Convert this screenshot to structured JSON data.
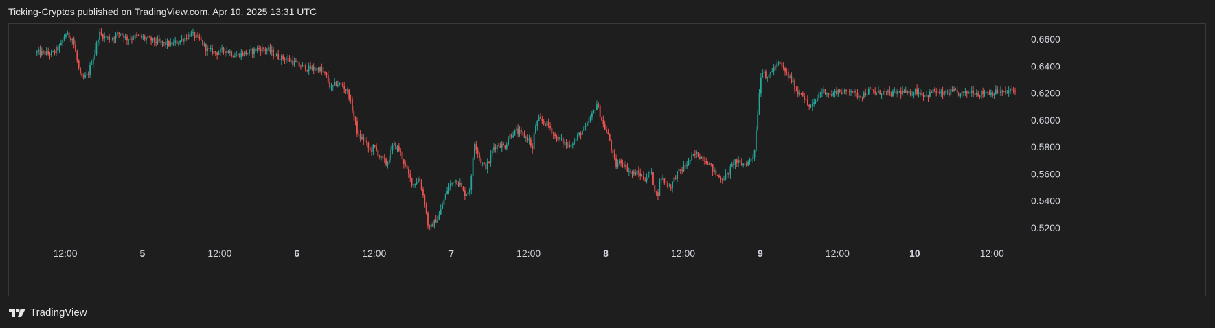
{
  "header": {
    "title": "Ticking-Cryptos published on TradingView.com, Apr 10, 2025 13:31 UTC"
  },
  "footer": {
    "brand": "TradingView"
  },
  "chart_data": {
    "type": "candlestick",
    "colors": {
      "up": "#26a69a",
      "down": "#ef5350",
      "background": "#1e1e1e",
      "text": "#d1d4dc",
      "border": "#3a3a3a"
    },
    "ylim": [
      0.505,
      0.671
    ],
    "yticks": [
      "0.6600",
      "0.6400",
      "0.6200",
      "0.6000",
      "0.5800",
      "0.5600",
      "0.5400",
      "0.5200"
    ],
    "xticks": [
      {
        "label": "12:00",
        "bold": false,
        "t": 36
      },
      {
        "label": "5",
        "bold": true,
        "t": 48
      },
      {
        "label": "12:00",
        "bold": false,
        "t": 60
      },
      {
        "label": "6",
        "bold": true,
        "t": 72
      },
      {
        "label": "12:00",
        "bold": false,
        "t": 84
      },
      {
        "label": "7",
        "bold": true,
        "t": 96
      },
      {
        "label": "12:00",
        "bold": false,
        "t": 108
      },
      {
        "label": "8",
        "bold": true,
        "t": 120
      },
      {
        "label": "12:00",
        "bold": false,
        "t": 132
      },
      {
        "label": "9",
        "bold": true,
        "t": 144
      },
      {
        "label": "12:00",
        "bold": false,
        "t": 156
      },
      {
        "label": "10",
        "bold": true,
        "t": 168
      },
      {
        "label": "12:00",
        "bold": false,
        "t": 180
      }
    ],
    "t_start": 31.6,
    "t_end": 183.8,
    "anchors": [
      [
        31.6,
        0.65
      ],
      [
        34.0,
        0.649
      ],
      [
        35.3,
        0.655
      ],
      [
        36.0,
        0.664
      ],
      [
        37.2,
        0.66
      ],
      [
        38.0,
        0.64
      ],
      [
        38.5,
        0.63
      ],
      [
        39.5,
        0.633
      ],
      [
        40.0,
        0.642
      ],
      [
        40.6,
        0.65
      ],
      [
        41.2,
        0.664
      ],
      [
        42.0,
        0.662
      ],
      [
        43.0,
        0.66
      ],
      [
        44.6,
        0.665
      ],
      [
        45.5,
        0.66
      ],
      [
        47.0,
        0.662
      ],
      [
        48.0,
        0.661
      ],
      [
        49.5,
        0.659
      ],
      [
        51.0,
        0.657
      ],
      [
        52.5,
        0.656
      ],
      [
        54.0,
        0.659
      ],
      [
        55.5,
        0.664
      ],
      [
        57.0,
        0.659
      ],
      [
        58.0,
        0.652
      ],
      [
        59.5,
        0.65
      ],
      [
        61.0,
        0.652
      ],
      [
        62.3,
        0.648
      ],
      [
        64.5,
        0.65
      ],
      [
        66.0,
        0.653
      ],
      [
        67.5,
        0.652
      ],
      [
        69.0,
        0.647
      ],
      [
        70.5,
        0.645
      ],
      [
        72.5,
        0.64
      ],
      [
        74.0,
        0.638
      ],
      [
        75.5,
        0.638
      ],
      [
        76.5,
        0.633
      ],
      [
        77.3,
        0.623
      ],
      [
        78.0,
        0.627
      ],
      [
        79.0,
        0.626
      ],
      [
        80.0,
        0.62
      ],
      [
        81.0,
        0.6
      ],
      [
        81.5,
        0.588
      ],
      [
        82.5,
        0.585
      ],
      [
        83.3,
        0.577
      ],
      [
        84.0,
        0.58
      ],
      [
        85.0,
        0.572
      ],
      [
        86.0,
        0.567
      ],
      [
        87.0,
        0.582
      ],
      [
        88.0,
        0.577
      ],
      [
        89.0,
        0.563
      ],
      [
        90.0,
        0.552
      ],
      [
        91.0,
        0.557
      ],
      [
        91.8,
        0.54
      ],
      [
        92.5,
        0.518
      ],
      [
        93.3,
        0.524
      ],
      [
        94.0,
        0.528
      ],
      [
        94.8,
        0.54
      ],
      [
        95.5,
        0.55
      ],
      [
        96.5,
        0.556
      ],
      [
        97.3,
        0.553
      ],
      [
        98.0,
        0.545
      ],
      [
        98.8,
        0.548
      ],
      [
        99.2,
        0.56
      ],
      [
        99.5,
        0.585
      ],
      [
        100.0,
        0.578
      ],
      [
        100.5,
        0.57
      ],
      [
        101.2,
        0.565
      ],
      [
        101.8,
        0.568
      ],
      [
        102.5,
        0.58
      ],
      [
        103.5,
        0.582
      ],
      [
        104.3,
        0.58
      ],
      [
        105.0,
        0.588
      ],
      [
        106.0,
        0.592
      ],
      [
        107.0,
        0.589
      ],
      [
        108.0,
        0.586
      ],
      [
        108.6,
        0.578
      ],
      [
        109.0,
        0.595
      ],
      [
        109.6,
        0.6
      ],
      [
        110.5,
        0.598
      ],
      [
        111.3,
        0.595
      ],
      [
        112.0,
        0.588
      ],
      [
        113.0,
        0.585
      ],
      [
        114.0,
        0.581
      ],
      [
        115.0,
        0.584
      ],
      [
        116.0,
        0.59
      ],
      [
        117.0,
        0.595
      ],
      [
        118.0,
        0.605
      ],
      [
        118.6,
        0.612
      ],
      [
        119.0,
        0.606
      ],
      [
        119.5,
        0.598
      ],
      [
        120.0,
        0.592
      ],
      [
        120.6,
        0.585
      ],
      [
        121.0,
        0.575
      ],
      [
        121.6,
        0.566
      ],
      [
        122.3,
        0.57
      ],
      [
        123.0,
        0.566
      ],
      [
        124.0,
        0.56
      ],
      [
        125.0,
        0.561
      ],
      [
        126.0,
        0.556
      ],
      [
        127.0,
        0.562
      ],
      [
        127.5,
        0.55
      ],
      [
        128.0,
        0.543
      ],
      [
        128.5,
        0.558
      ],
      [
        129.0,
        0.555
      ],
      [
        130.0,
        0.55
      ],
      [
        131.0,
        0.56
      ],
      [
        132.0,
        0.564
      ],
      [
        133.0,
        0.57
      ],
      [
        134.0,
        0.575
      ],
      [
        135.0,
        0.572
      ],
      [
        136.0,
        0.568
      ],
      [
        137.0,
        0.56
      ],
      [
        138.0,
        0.556
      ],
      [
        139.0,
        0.56
      ],
      [
        139.5,
        0.565
      ],
      [
        140.0,
        0.57
      ],
      [
        141.0,
        0.567
      ],
      [
        142.0,
        0.568
      ],
      [
        143.0,
        0.574
      ],
      [
        143.5,
        0.6
      ],
      [
        144.0,
        0.63
      ],
      [
        144.5,
        0.64
      ],
      [
        145.0,
        0.628
      ],
      [
        145.5,
        0.635
      ],
      [
        146.0,
        0.638
      ],
      [
        147.0,
        0.642
      ],
      [
        148.0,
        0.635
      ],
      [
        149.0,
        0.628
      ],
      [
        149.8,
        0.62
      ],
      [
        150.5,
        0.621
      ],
      [
        151.2,
        0.612
      ],
      [
        151.8,
        0.609
      ],
      [
        152.5,
        0.613
      ],
      [
        153.2,
        0.62
      ],
      [
        154.0,
        0.622
      ],
      [
        155.0,
        0.618
      ],
      [
        156.0,
        0.622
      ],
      [
        157.0,
        0.62
      ],
      [
        158.0,
        0.623
      ],
      [
        159.0,
        0.618
      ],
      [
        160.0,
        0.619
      ],
      [
        161.0,
        0.622
      ],
      [
        162.0,
        0.62
      ],
      [
        163.0,
        0.621
      ],
      [
        164.0,
        0.619
      ],
      [
        165.0,
        0.62
      ],
      [
        166.0,
        0.621
      ],
      [
        167.0,
        0.619
      ],
      [
        168.0,
        0.622
      ],
      [
        169.0,
        0.62
      ],
      [
        170.0,
        0.618
      ],
      [
        171.0,
        0.622
      ],
      [
        172.0,
        0.619
      ],
      [
        173.0,
        0.62
      ],
      [
        174.0,
        0.621
      ],
      [
        175.0,
        0.619
      ],
      [
        176.0,
        0.62
      ],
      [
        177.0,
        0.622
      ],
      [
        178.0,
        0.619
      ],
      [
        179.0,
        0.621
      ],
      [
        180.0,
        0.62
      ],
      [
        181.0,
        0.621
      ],
      [
        182.0,
        0.62
      ],
      [
        183.0,
        0.622
      ],
      [
        183.8,
        0.621
      ]
    ]
  }
}
